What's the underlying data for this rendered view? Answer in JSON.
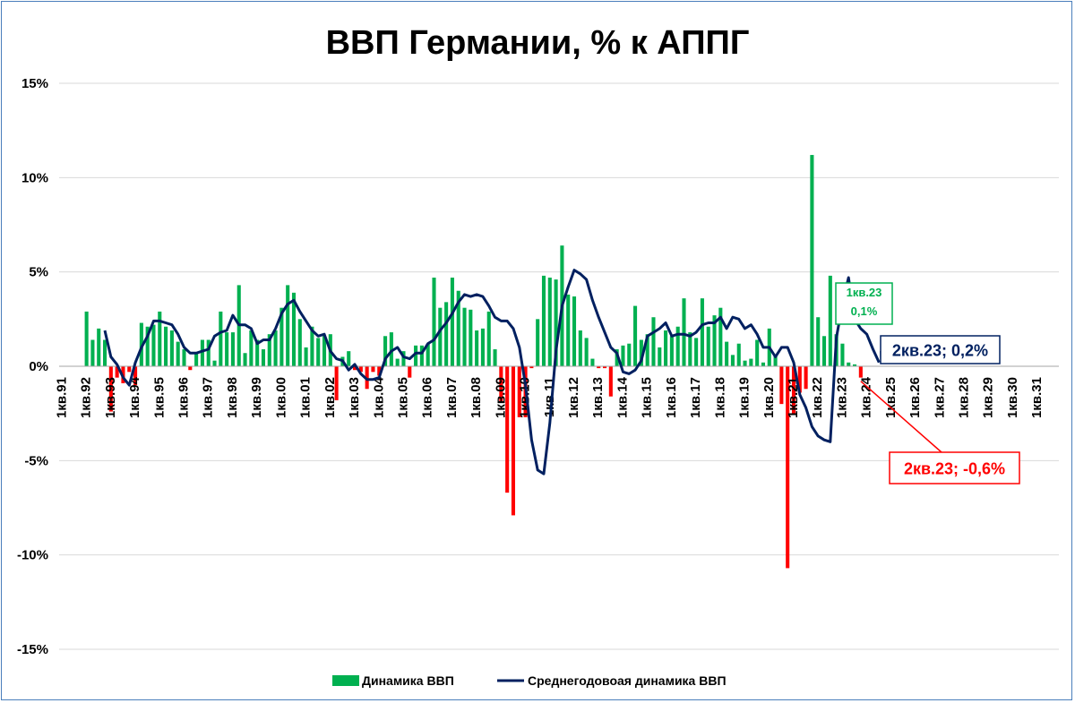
{
  "chart_data": {
    "type": "bar",
    "title": "ВВП Германии, % к АППГ",
    "y_ticks": [
      "15%",
      "10%",
      "5%",
      "0%",
      "-5%",
      "-10%",
      "-15%"
    ],
    "ylim": [
      -15,
      15
    ],
    "grid": true,
    "legend_position": "bottom",
    "x_start": "1кв.91",
    "x_ticks": [
      "1кв.91",
      "1кв.92",
      "1кв.93",
      "1кв.94",
      "1кв.95",
      "1кв.96",
      "1кв.97",
      "1кв.98",
      "1кв.99",
      "1кв.00",
      "1кв.01",
      "1кв.02",
      "1кв.03",
      "1кв.04",
      "1кв.05",
      "1кв.06",
      "1кв.07",
      "1кв.08",
      "1кв.09",
      "1кв.10",
      "1кв.11",
      "1кв.12",
      "1кв.13",
      "1кв.14",
      "1кв.15",
      "1кв.16",
      "1кв.17",
      "1кв.18",
      "1кв.19",
      "1кв.20",
      "1кв.21",
      "1кв.22",
      "1кв.23",
      "1кв.24",
      "1кв.25",
      "1кв.26",
      "1кв.27",
      "1кв.28",
      "1кв.29",
      "1кв.30",
      "1кв.31"
    ],
    "series": [
      {
        "name": "Динамика ВВП",
        "kind": "bar",
        "color_positive": "#00b050",
        "color_negative": "#ff0000",
        "start_index": 4,
        "values": [
          2.9,
          1.4,
          2.0,
          1.4,
          -2.4,
          -0.6,
          -0.9,
          -0.3,
          -1.0,
          2.3,
          2.1,
          2.2,
          2.9,
          2.1,
          1.9,
          1.3,
          0.9,
          -0.2,
          0.7,
          1.4,
          1.4,
          0.3,
          2.9,
          1.8,
          1.8,
          4.3,
          0.7,
          1.9,
          1.4,
          0.9,
          1.7,
          1.9,
          3.1,
          4.3,
          3.9,
          2.5,
          1.0,
          2.1,
          1.5,
          1.6,
          1.7,
          -1.8,
          0.5,
          0.8,
          -0.2,
          -0.3,
          -1.2,
          -0.3,
          -0.5,
          1.6,
          1.8,
          0.4,
          0.8,
          -0.6,
          1.1,
          1.1,
          1.2,
          4.7,
          3.1,
          3.4,
          4.7,
          4.0,
          3.1,
          3.0,
          1.9,
          2.0,
          2.9,
          0.9,
          -1.9,
          -6.7,
          -7.9,
          -2.7,
          -2.7,
          -0.1,
          2.5,
          4.8,
          4.7,
          4.6,
          6.4,
          3.8,
          3.7,
          1.9,
          1.5,
          0.4,
          -0.1,
          -0.1,
          -1.6,
          0.9,
          1.1,
          1.2,
          3.2,
          1.4,
          1.7,
          2.6,
          1.0,
          1.9,
          1.6,
          2.1,
          3.6,
          1.8,
          1.5,
          3.6,
          2.1,
          2.7,
          3.1,
          1.3,
          0.6,
          1.2,
          0.3,
          0.4,
          1.4,
          0.2,
          2.0,
          0.6,
          -2.0,
          -10.7,
          -2.5,
          -1.4,
          -1.2,
          11.2,
          2.6,
          1.6,
          4.8,
          1.7,
          1.2,
          0.2,
          0.1,
          -0.6
        ]
      },
      {
        "name": "Среднегодовоая динамика ВВП",
        "kind": "line",
        "color": "#002060",
        "start_index": 7,
        "values": [
          1.9,
          0.5,
          0.1,
          -0.6,
          -1.0,
          0.2,
          1.0,
          1.6,
          2.4,
          2.4,
          2.3,
          2.2,
          1.7,
          1.0,
          0.7,
          0.7,
          0.8,
          0.9,
          1.6,
          1.8,
          1.9,
          2.7,
          2.2,
          2.2,
          2.0,
          1.2,
          1.4,
          1.4,
          2.0,
          2.8,
          3.3,
          3.5,
          2.9,
          2.4,
          1.9,
          1.6,
          1.7,
          0.8,
          0.4,
          0.3,
          -0.2,
          0.1,
          -0.4,
          -0.7,
          -0.7,
          -0.6,
          0.4,
          0.8,
          1.0,
          0.5,
          0.4,
          0.7,
          0.7,
          1.2,
          1.4,
          1.9,
          2.3,
          2.8,
          3.4,
          3.8,
          3.7,
          3.8,
          3.7,
          3.2,
          2.6,
          2.4,
          2.4,
          2.0,
          1.0,
          -1.0,
          -3.9,
          -5.5,
          -5.7,
          -3.0,
          0.8,
          3.2,
          4.2,
          5.1,
          4.9,
          4.6,
          3.5,
          2.6,
          1.8,
          1.0,
          0.7,
          -0.3,
          -0.4,
          -0.2,
          0.3,
          1.6,
          1.8,
          2.0,
          2.3,
          1.6,
          1.7,
          1.7,
          1.6,
          1.8,
          2.2,
          2.3,
          2.3,
          2.6,
          2.0,
          2.6,
          2.5,
          2.0,
          2.2,
          1.7,
          1.0,
          1.0,
          0.5,
          1.0,
          1.0,
          0.2,
          -1.5,
          -2.2,
          -3.2,
          -3.7,
          -3.9,
          -4.0,
          1.5,
          3.3,
          4.7,
          2.5,
          2.0,
          1.7,
          0.9,
          0.2
        ]
      }
    ],
    "annotations": [
      {
        "lines": [
          "1кв.23",
          "0,1%"
        ],
        "color": "#00b050"
      },
      {
        "lines": [
          "2кв.23; 0,2%"
        ],
        "color": "#002060"
      },
      {
        "lines": [
          "2кв.23; -0,6%"
        ],
        "color": "#ff0000"
      }
    ]
  }
}
